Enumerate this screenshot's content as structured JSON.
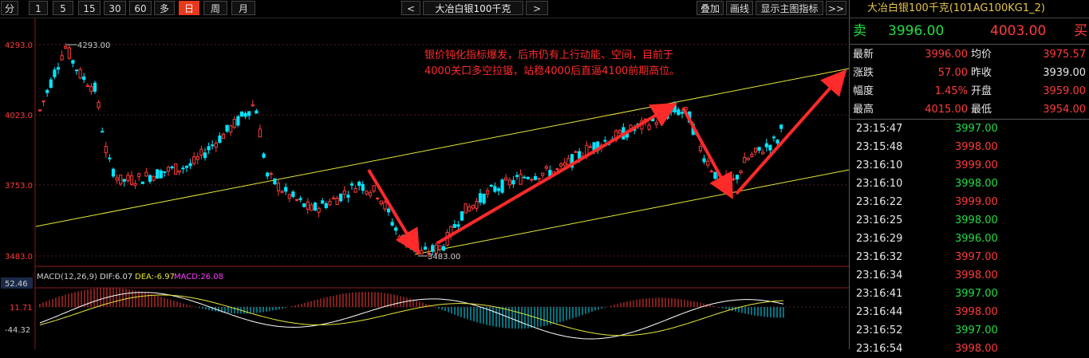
{
  "toolbar": {
    "periods": [
      "分",
      "1",
      "5",
      "15",
      "30",
      "60",
      "多",
      "日",
      "周",
      "月"
    ],
    "active_period": "日",
    "prev_label": "<",
    "next_label": ">",
    "symbol_name": "大冶白银100千克",
    "right_buttons": [
      "叠加",
      "画线",
      "显示主图指标",
      ">>"
    ]
  },
  "price_axis": {
    "labels": [
      "4293.0",
      "4023.0",
      "3753.0",
      "3483.0"
    ]
  },
  "price_annotations": {
    "high_marker": "4293.00",
    "low_marker": "3483.00"
  },
  "annotation_text": {
    "line1": "银价钝化指标爆发，后市仍有上行动能、空间，目前于",
    "line2": "4000关口多空拉锯，站稳4000后直逼4100前期高位。"
  },
  "macd": {
    "legend_name": "MACD(12,26,9)",
    "dif": "DIF:6.07",
    "dea": "DEA:-6.97",
    "macd": "MACD:26.08",
    "axis_labels": [
      "52.46",
      "11.71",
      "-44.32"
    ]
  },
  "sidebar": {
    "title": "大冶白银100千克(101AG100KG1_2)",
    "sell_label": "卖",
    "sell_price": "3996.00",
    "buy_price": "4003.00",
    "buy_label": "买",
    "stats": [
      {
        "k1": "最新",
        "v1": "3996.00",
        "k2": "均价",
        "v2": "3975.57"
      },
      {
        "k1": "涨跌",
        "v1": "57.00",
        "k2": "昨收",
        "v2": "3939.00"
      },
      {
        "k1": "幅度",
        "v1": "1.45%",
        "k2": "开盘",
        "v2": "3959.00"
      },
      {
        "k1": "最高",
        "v1": "4015.00",
        "k2": "最低",
        "v2": "3954.00"
      }
    ],
    "ticks": [
      {
        "time": "23:15:47",
        "price": "3997.00",
        "dir": "down"
      },
      {
        "time": "23:15:48",
        "price": "3998.00",
        "dir": "up"
      },
      {
        "time": "23:16:10",
        "price": "3999.00",
        "dir": "up"
      },
      {
        "time": "23:16:10",
        "price": "3998.00",
        "dir": "down"
      },
      {
        "time": "23:16:22",
        "price": "3999.00",
        "dir": "up"
      },
      {
        "time": "23:16:25",
        "price": "3998.00",
        "dir": "down"
      },
      {
        "time": "23:16:29",
        "price": "3996.00",
        "dir": "down"
      },
      {
        "time": "23:16:32",
        "price": "3997.00",
        "dir": "up"
      },
      {
        "time": "23:16:34",
        "price": "3998.00",
        "dir": "up"
      },
      {
        "time": "23:16:41",
        "price": "3997.00",
        "dir": "down"
      },
      {
        "time": "23:16:44",
        "price": "3998.00",
        "dir": "up"
      },
      {
        "time": "23:16:52",
        "price": "3997.00",
        "dir": "down"
      },
      {
        "time": "23:16:54",
        "price": "3998.00",
        "dir": "up"
      }
    ]
  },
  "colors": {
    "up": "#ff3b3b",
    "down": "#00e5ff",
    "annotation": "#ff2a2a",
    "trendline": "#e8e83a",
    "axis_text": "#ff3b3b"
  }
}
